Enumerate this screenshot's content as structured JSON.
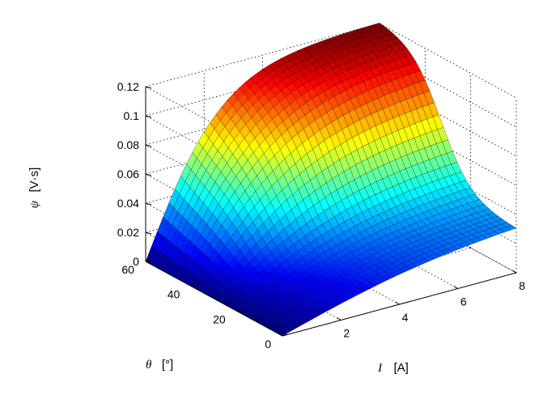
{
  "chart_data": {
    "type": "surface3d",
    "colormap": "jet",
    "grid": true,
    "x": {
      "symbol": "I",
      "unit": "[A]",
      "range": [
        0,
        8
      ],
      "ticks": [
        "2",
        "4",
        "6",
        "8"
      ]
    },
    "y": {
      "symbol": "θ",
      "unit": "[°]",
      "range": [
        0,
        60
      ],
      "ticks": [
        "0",
        "20",
        "40",
        "60"
      ]
    },
    "z": {
      "symbol": "ψ",
      "unit": "[V·s]",
      "range": [
        0,
        0.12
      ],
      "ticks": [
        "0",
        "0.02",
        "0.04",
        "0.06",
        "0.08",
        "0.1",
        "0.12"
      ]
    },
    "samples": [
      {
        "I": 0,
        "theta": 0,
        "psi": 0.0
      },
      {
        "I": 8,
        "theta": 0,
        "psi": 0.03
      },
      {
        "I": 0,
        "theta": 60,
        "psi": 0.0
      },
      {
        "I": 4,
        "theta": 60,
        "psi": 0.107
      },
      {
        "I": 8,
        "theta": 60,
        "psi": 0.12
      }
    ]
  }
}
